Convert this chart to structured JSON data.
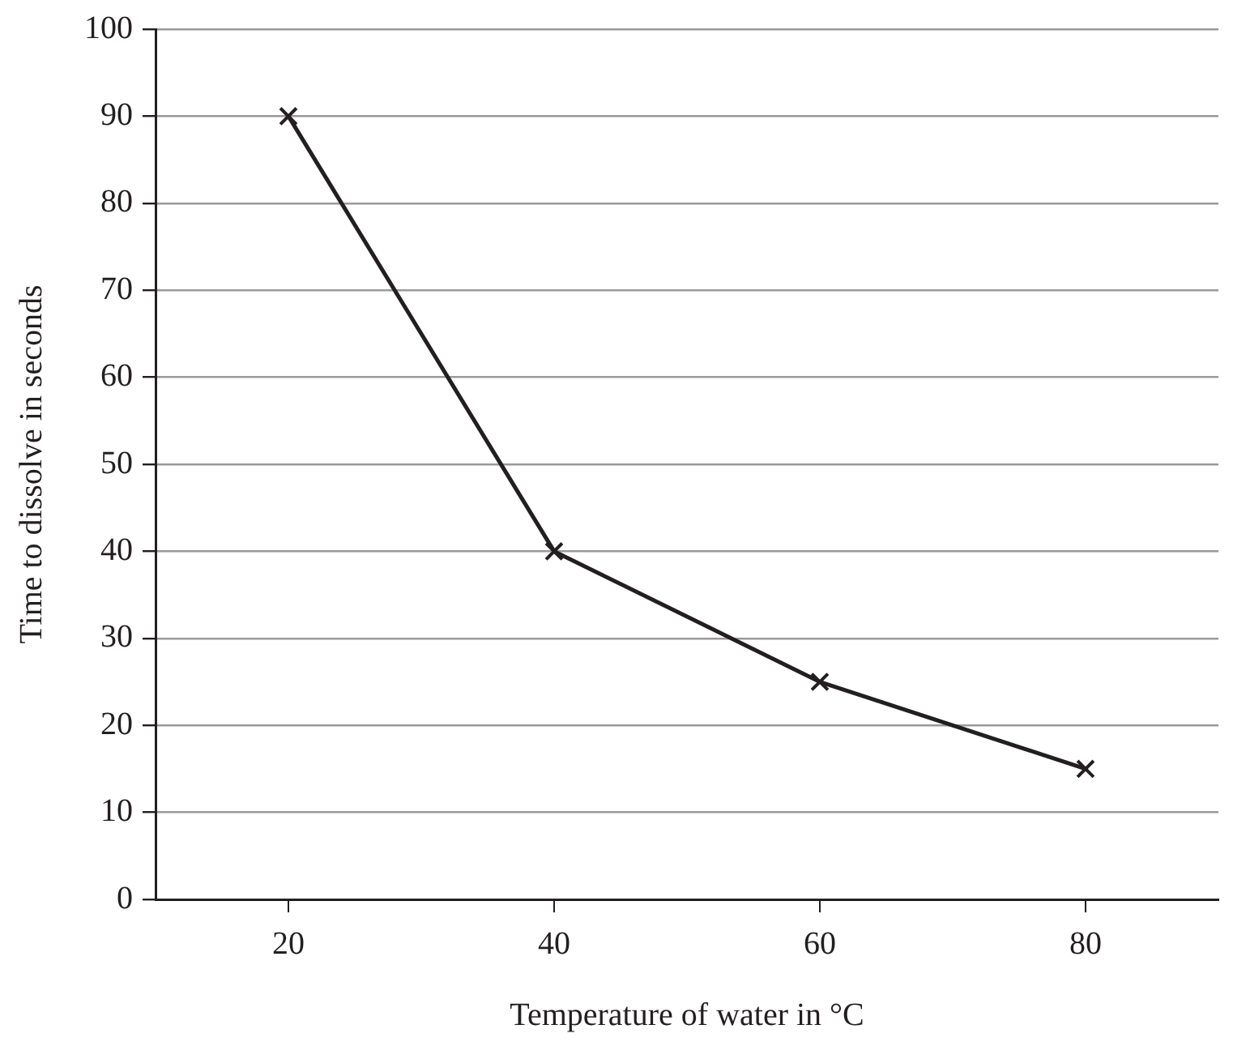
{
  "chart_data": {
    "type": "line",
    "xlabel": "Temperature of water in °C",
    "ylabel": "Time to dissolve in seconds",
    "x": [
      20,
      40,
      60,
      80
    ],
    "series": [
      {
        "color": "#231f20",
        "values": [
          90,
          40,
          25,
          15
        ]
      }
    ],
    "xlim": [
      10,
      90
    ],
    "xticks": [
      20,
      40,
      60,
      80
    ],
    "ylim": [
      0,
      100
    ],
    "yticks": [
      0,
      10,
      20,
      30,
      40,
      50,
      60,
      70,
      80,
      90,
      100
    ],
    "grid": "y",
    "legend": false,
    "marker": "cross",
    "line_style": "solid"
  }
}
